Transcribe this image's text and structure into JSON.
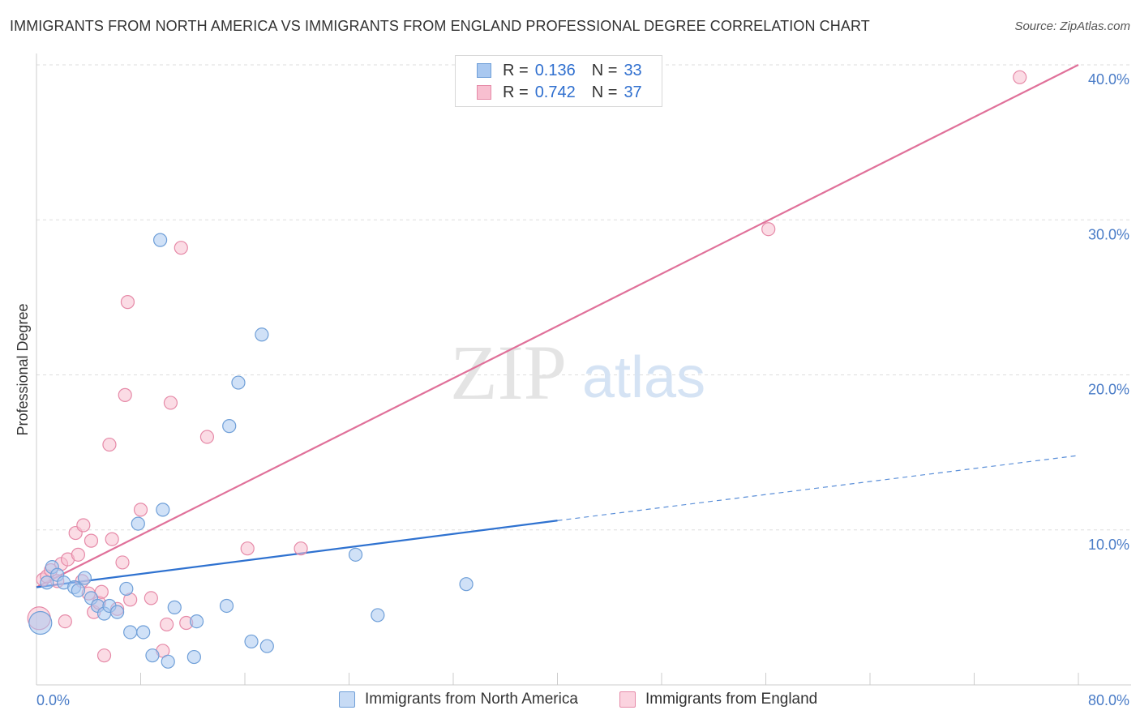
{
  "title": "IMMIGRANTS FROM NORTH AMERICA VS IMMIGRANTS FROM ENGLAND PROFESSIONAL DEGREE CORRELATION CHART",
  "source": "Source: ZipAtlas.com",
  "watermark": {
    "zip": "ZIP",
    "atlas": "atlas"
  },
  "legend_stats": [
    {
      "r_label": "R =",
      "r_value": "0.136",
      "n_label": "N =",
      "n_value": "33",
      "color": "#a9c8f0",
      "border": "#6f9fd8"
    },
    {
      "r_label": "R =",
      "r_value": "0.742",
      "n_label": "N =",
      "n_value": "37",
      "color": "#f8bfd0",
      "border": "#e68aa8"
    }
  ],
  "bottom_legend": [
    {
      "label": "Immigrants from North America",
      "color": "#c7dbf5",
      "border": "#6f9fd8"
    },
    {
      "label": "Immigrants from England",
      "color": "#fbd3df",
      "border": "#e68aa8"
    }
  ],
  "chart_data": {
    "type": "scatter",
    "title": "IMMIGRANTS FROM NORTH AMERICA VS IMMIGRANTS FROM ENGLAND PROFESSIONAL DEGREE CORRELATION CHART",
    "xlabel": "",
    "ylabel": "Professional Degree",
    "xlim": [
      0,
      80
    ],
    "ylim": [
      0,
      40
    ],
    "x_tick_labels": [
      "0.0%",
      "80.0%"
    ],
    "y_ticks": [
      10,
      20,
      30,
      40
    ],
    "y_tick_labels": [
      "10.0%",
      "20.0%",
      "30.0%",
      "40.0%"
    ],
    "grid": true,
    "legend_position": "top-center",
    "series": [
      {
        "name": "Immigrants from North America",
        "color": "#6f9fd8",
        "fill": "#a9c8f0",
        "points": [
          [
            0.3,
            4.0
          ],
          [
            0.8,
            6.6
          ],
          [
            1.2,
            7.6
          ],
          [
            1.6,
            7.1
          ],
          [
            2.1,
            6.6
          ],
          [
            2.9,
            6.3
          ],
          [
            3.2,
            6.1
          ],
          [
            3.7,
            6.9
          ],
          [
            4.2,
            5.6
          ],
          [
            4.7,
            5.1
          ],
          [
            5.2,
            4.6
          ],
          [
            5.6,
            5.1
          ],
          [
            6.2,
            4.7
          ],
          [
            6.9,
            6.2
          ],
          [
            7.2,
            3.4
          ],
          [
            7.8,
            10.4
          ],
          [
            8.2,
            3.4
          ],
          [
            8.9,
            1.9
          ],
          [
            9.5,
            28.7
          ],
          [
            9.7,
            11.3
          ],
          [
            10.1,
            1.5
          ],
          [
            10.6,
            5.0
          ],
          [
            12.1,
            1.8
          ],
          [
            12.3,
            4.1
          ],
          [
            14.6,
            5.1
          ],
          [
            14.8,
            16.7
          ],
          [
            15.5,
            19.5
          ],
          [
            16.5,
            2.8
          ],
          [
            17.3,
            22.6
          ],
          [
            17.7,
            2.5
          ],
          [
            24.5,
            8.4
          ],
          [
            26.2,
            4.5
          ],
          [
            33.0,
            6.5
          ]
        ],
        "trend": {
          "x0": 0,
          "y0": 6.3,
          "x1": 40,
          "y1": 10.6,
          "dashed_to_x": 80,
          "dashed_to_y": 14.8
        }
      },
      {
        "name": "Immigrants from England",
        "color": "#e68aa8",
        "fill": "#f8bfd0",
        "points": [
          [
            0.2,
            4.3
          ],
          [
            0.5,
            6.8
          ],
          [
            0.8,
            7.0
          ],
          [
            1.1,
            7.4
          ],
          [
            1.6,
            6.7
          ],
          [
            1.9,
            7.8
          ],
          [
            2.2,
            4.1
          ],
          [
            2.4,
            8.1
          ],
          [
            3.0,
            9.8
          ],
          [
            3.2,
            8.4
          ],
          [
            3.6,
            10.3
          ],
          [
            4.0,
            5.9
          ],
          [
            4.2,
            9.3
          ],
          [
            4.4,
            4.7
          ],
          [
            4.8,
            5.3
          ],
          [
            5.0,
            6.0
          ],
          [
            5.2,
            1.9
          ],
          [
            5.8,
            9.4
          ],
          [
            6.2,
            4.9
          ],
          [
            6.6,
            7.9
          ],
          [
            6.8,
            18.7
          ],
          [
            7.0,
            24.7
          ],
          [
            5.6,
            15.5
          ],
          [
            8.0,
            11.3
          ],
          [
            8.8,
            5.6
          ],
          [
            9.7,
            2.2
          ],
          [
            10.0,
            3.9
          ],
          [
            10.3,
            18.2
          ],
          [
            11.1,
            28.2
          ],
          [
            11.5,
            4.0
          ],
          [
            13.1,
            16.0
          ],
          [
            16.2,
            8.8
          ],
          [
            20.3,
            8.8
          ],
          [
            7.2,
            5.5
          ],
          [
            56.2,
            29.4
          ],
          [
            75.5,
            39.2
          ],
          [
            3.5,
            6.7
          ]
        ],
        "trend": {
          "x0": 0,
          "y0": 6.3,
          "x1": 80,
          "y1": 40.0
        }
      }
    ]
  }
}
